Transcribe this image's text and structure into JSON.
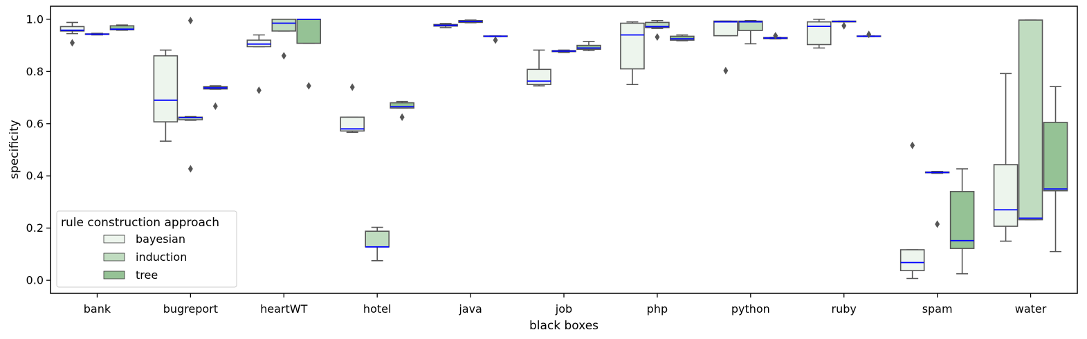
{
  "chart_data": {
    "type": "box",
    "xlabel": "black boxes",
    "ylabel": "specificity",
    "ylim": [
      -0.05,
      1.05
    ],
    "yticks": [
      0.0,
      0.2,
      0.4,
      0.6,
      0.8,
      1.0
    ],
    "categories": [
      "bank",
      "bugreport",
      "heartWT",
      "hotel",
      "java",
      "job",
      "php",
      "python",
      "ruby",
      "spam",
      "water"
    ],
    "legend": {
      "title": "rule construction approach",
      "placement": "lower-left",
      "entries": [
        "bayesian",
        "induction",
        "tree"
      ]
    },
    "series": [
      {
        "name": "bayesian",
        "color": "#edf5ed",
        "boxes": [
          {
            "min": 0.945,
            "q1": 0.955,
            "median": 0.958,
            "q3": 0.972,
            "max": 0.988,
            "outliers": [
              0.91
            ]
          },
          {
            "min": 0.533,
            "q1": 0.607,
            "median": 0.69,
            "q3": 0.86,
            "max": 0.882,
            "outliers": []
          },
          {
            "min": 0.895,
            "q1": 0.895,
            "median": 0.905,
            "q3": 0.92,
            "max": 0.94,
            "outliers": [
              0.728
            ]
          },
          {
            "min": 0.567,
            "q1": 0.572,
            "median": 0.58,
            "q3": 0.625,
            "max": 0.625,
            "outliers": [
              0.74
            ]
          },
          {
            "min": 0.968,
            "q1": 0.974,
            "median": 0.977,
            "q3": 0.98,
            "max": 0.984,
            "outliers": []
          },
          {
            "min": 0.745,
            "q1": 0.75,
            "median": 0.763,
            "q3": 0.808,
            "max": 0.882,
            "outliers": []
          },
          {
            "min": 0.75,
            "q1": 0.81,
            "median": 0.94,
            "q3": 0.985,
            "max": 0.99,
            "outliers": []
          },
          {
            "min": 0.937,
            "q1": 0.937,
            "median": 0.99,
            "q3": 0.993,
            "max": 0.993,
            "outliers": [
              0.803
            ]
          },
          {
            "min": 0.89,
            "q1": 0.903,
            "median": 0.973,
            "q3": 0.99,
            "max": 1.0,
            "outliers": []
          },
          {
            "min": 0.007,
            "q1": 0.037,
            "median": 0.068,
            "q3": 0.117,
            "max": 0.117,
            "outliers": [
              0.517
            ]
          },
          {
            "min": 0.15,
            "q1": 0.207,
            "median": 0.27,
            "q3": 0.443,
            "max": 0.792,
            "outliers": []
          }
        ]
      },
      {
        "name": "induction",
        "color": "#c0dcc0",
        "boxes": [
          {
            "min": 0.94,
            "q1": 0.942,
            "median": 0.943,
            "q3": 0.944,
            "max": 0.946,
            "outliers": []
          },
          {
            "min": 0.613,
            "q1": 0.615,
            "median": 0.623,
            "q3": 0.625,
            "max": 0.627,
            "outliers": [
              0.995,
              0.427
            ]
          },
          {
            "min": 0.955,
            "q1": 0.955,
            "median": 0.985,
            "q3": 1.0,
            "max": 1.0,
            "outliers": [
              0.86
            ]
          },
          {
            "min": 0.075,
            "q1": 0.128,
            "median": 0.128,
            "q3": 0.188,
            "max": 0.203,
            "outliers": []
          },
          {
            "min": 0.987,
            "q1": 0.988,
            "median": 0.992,
            "q3": 0.995,
            "max": 0.997,
            "outliers": []
          },
          {
            "min": 0.873,
            "q1": 0.876,
            "median": 0.878,
            "q3": 0.88,
            "max": 0.882,
            "outliers": []
          },
          {
            "min": 0.965,
            "q1": 0.968,
            "median": 0.972,
            "q3": 0.988,
            "max": 0.995,
            "outliers": [
              0.932
            ]
          },
          {
            "min": 0.906,
            "q1": 0.957,
            "median": 0.99,
            "q3": 0.993,
            "max": 0.995,
            "outliers": []
          },
          {
            "min": 0.99,
            "q1": 0.99,
            "median": 0.992,
            "q3": 0.993,
            "max": 0.993,
            "outliers": [
              0.975
            ]
          },
          {
            "min": 0.41,
            "q1": 0.412,
            "median": 0.413,
            "q3": 0.415,
            "max": 0.417,
            "outliers": [
              0.215
            ]
          },
          {
            "min": 0.232,
            "q1": 0.232,
            "median": 0.238,
            "q3": 0.997,
            "max": 0.997,
            "outliers": []
          }
        ]
      },
      {
        "name": "tree",
        "color": "#95c295",
        "boxes": [
          {
            "min": 0.958,
            "q1": 0.96,
            "median": 0.962,
            "q3": 0.975,
            "max": 0.978,
            "outliers": []
          },
          {
            "min": 0.732,
            "q1": 0.733,
            "median": 0.737,
            "q3": 0.742,
            "max": 0.745,
            "outliers": [
              0.667
            ]
          },
          {
            "min": 0.908,
            "q1": 0.908,
            "median": 1.0,
            "q3": 1.0,
            "max": 1.0,
            "outliers": [
              0.745
            ]
          },
          {
            "min": 0.66,
            "q1": 0.66,
            "median": 0.665,
            "q3": 0.68,
            "max": 0.685,
            "outliers": [
              0.625
            ]
          },
          {
            "min": 0.934,
            "q1": 0.934,
            "median": 0.935,
            "q3": 0.936,
            "max": 0.936,
            "outliers": [
              0.92
            ]
          },
          {
            "min": 0.88,
            "q1": 0.885,
            "median": 0.89,
            "q3": 0.9,
            "max": 0.915,
            "outliers": []
          },
          {
            "min": 0.918,
            "q1": 0.92,
            "median": 0.925,
            "q3": 0.935,
            "max": 0.94,
            "outliers": []
          },
          {
            "min": 0.925,
            "q1": 0.926,
            "median": 0.928,
            "q3": 0.93,
            "max": 0.931,
            "outliers": [
              0.937
            ]
          },
          {
            "min": 0.934,
            "q1": 0.934,
            "median": 0.935,
            "q3": 0.936,
            "max": 0.936,
            "outliers": [
              0.942
            ]
          },
          {
            "min": 0.025,
            "q1": 0.122,
            "median": 0.152,
            "q3": 0.34,
            "max": 0.427,
            "outliers": []
          },
          {
            "min": 0.11,
            "q1": 0.343,
            "median": 0.35,
            "q3": 0.605,
            "max": 0.742,
            "outliers": []
          }
        ]
      }
    ],
    "median_color": "#0000ff",
    "line_color": "#555555"
  }
}
